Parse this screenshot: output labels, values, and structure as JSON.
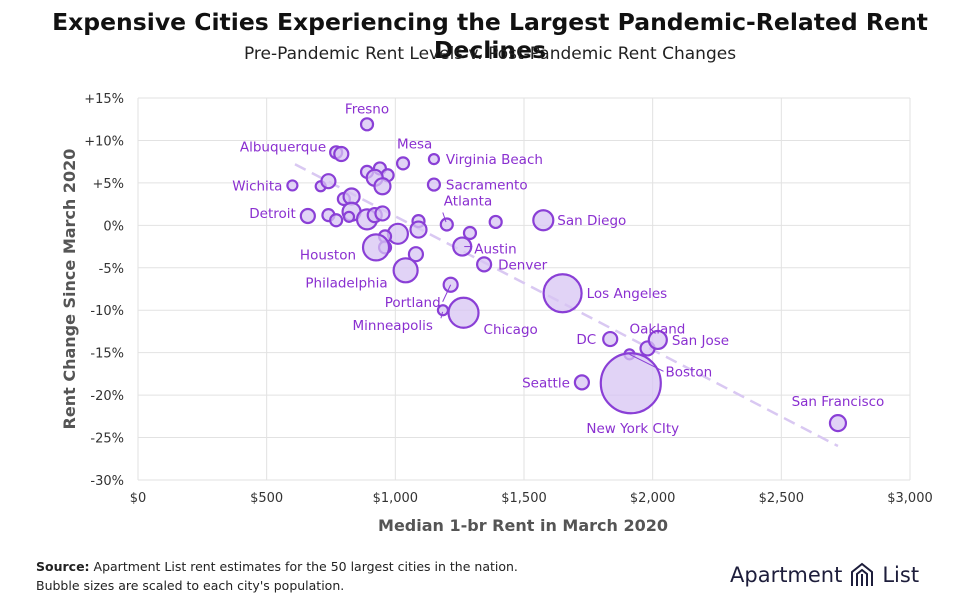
{
  "title": "Expensive Cities Experiencing the Largest Pandemic-Related Rent Declines",
  "subtitle": "Pre-Pandemic Rent Levels v. Post-Pandemic Rent Changes",
  "source": {
    "label": "Source:",
    "line1": "Apartment List rent estimates for the 50 largest cities in the nation.",
    "line2": "Bubble sizes are scaled to each city's population."
  },
  "logo": {
    "left": "Apartment",
    "right": "List"
  },
  "colors": {
    "bubble_fill": "#d7c4f3",
    "bubble_stroke": "#8a3fd6",
    "label": "#8a2fd0",
    "grid": "#e2e2e2",
    "trend": "#d9c8f2"
  },
  "chart_data": {
    "type": "scatter",
    "xlabel": "Median 1-br Rent in March 2020",
    "ylabel": "Rent Change Since March 2020",
    "xlim": [
      0,
      3000
    ],
    "ylim": [
      -30,
      15
    ],
    "x_ticks": [
      0,
      500,
      1000,
      1500,
      2000,
      2500,
      3000
    ],
    "x_tick_labels": [
      "$0",
      "$500",
      "$1,000",
      "$1,500",
      "$2,000",
      "$2,500",
      "$3,000"
    ],
    "y_ticks": [
      15,
      10,
      5,
      0,
      -5,
      -10,
      -15,
      -20,
      -25,
      -30
    ],
    "y_tick_labels": [
      "+15%",
      "+10%",
      "+5%",
      "0%",
      "-5%",
      "-10%",
      "-15%",
      "-20%",
      "-25%",
      "-30%"
    ],
    "grid": true,
    "trendline": {
      "x": [
        610,
        2720
      ],
      "y": [
        7.2,
        -26
      ]
    },
    "points": [
      {
        "label": "Fresno",
        "x": 890,
        "y": 11.9,
        "r": 6
      },
      {
        "label": "Albuquerque",
        "x": 770,
        "y": 8.6,
        "r": 6
      },
      {
        "label": "",
        "x": 790,
        "y": 8.4,
        "r": 7
      },
      {
        "label": "Mesa",
        "x": 1030,
        "y": 7.3,
        "r": 6
      },
      {
        "label": "Virginia Beach",
        "x": 1150,
        "y": 7.8,
        "r": 5
      },
      {
        "label": "",
        "x": 890,
        "y": 6.3,
        "r": 6
      },
      {
        "label": "",
        "x": 940,
        "y": 6.7,
        "r": 6
      },
      {
        "label": "",
        "x": 970,
        "y": 5.9,
        "r": 6
      },
      {
        "label": "",
        "x": 920,
        "y": 5.6,
        "r": 8
      },
      {
        "label": "",
        "x": 950,
        "y": 4.6,
        "r": 8
      },
      {
        "label": "Sacramento",
        "x": 1150,
        "y": 4.8,
        "r": 6
      },
      {
        "label": "Wichita",
        "x": 600,
        "y": 4.7,
        "r": 5
      },
      {
        "label": "",
        "x": 710,
        "y": 4.6,
        "r": 5
      },
      {
        "label": "",
        "x": 740,
        "y": 5.2,
        "r": 7
      },
      {
        "label": "",
        "x": 800,
        "y": 3.1,
        "r": 6
      },
      {
        "label": "",
        "x": 830,
        "y": 3.4,
        "r": 8
      },
      {
        "label": "",
        "x": 830,
        "y": 1.6,
        "r": 9
      },
      {
        "label": "Detroit",
        "x": 660,
        "y": 1.1,
        "r": 7
      },
      {
        "label": "",
        "x": 740,
        "y": 1.2,
        "r": 6
      },
      {
        "label": "",
        "x": 770,
        "y": 0.6,
        "r": 6
      },
      {
        "label": "",
        "x": 820,
        "y": 1.0,
        "r": 5
      },
      {
        "label": "",
        "x": 890,
        "y": 0.7,
        "r": 10
      },
      {
        "label": "",
        "x": 920,
        "y": 1.2,
        "r": 7
      },
      {
        "label": "",
        "x": 950,
        "y": 1.4,
        "r": 7
      },
      {
        "label": "",
        "x": 1090,
        "y": 0.5,
        "r": 6
      },
      {
        "label": "Atlanta",
        "x": 1200,
        "y": 0.1,
        "r": 6
      },
      {
        "label": "",
        "x": 1390,
        "y": 0.4,
        "r": 6
      },
      {
        "label": "San Diego",
        "x": 1575,
        "y": 0.6,
        "r": 10
      },
      {
        "label": "",
        "x": 1090,
        "y": -0.5,
        "r": 8
      },
      {
        "label": "",
        "x": 1010,
        "y": -1.0,
        "r": 10
      },
      {
        "label": "",
        "x": 960,
        "y": -1.3,
        "r": 6
      },
      {
        "label": "",
        "x": 960,
        "y": -2.6,
        "r": 6
      },
      {
        "label": "Houston",
        "x": 925,
        "y": -2.6,
        "r": 13
      },
      {
        "label": "",
        "x": 1290,
        "y": -0.9,
        "r": 6
      },
      {
        "label": "Austin",
        "x": 1260,
        "y": -2.5,
        "r": 9
      },
      {
        "label": "",
        "x": 1080,
        "y": -3.4,
        "r": 7
      },
      {
        "label": "Denver",
        "x": 1345,
        "y": -4.6,
        "r": 7
      },
      {
        "label": "Philadelphia",
        "x": 1040,
        "y": -5.3,
        "r": 12
      },
      {
        "label": "Portland",
        "x": 1215,
        "y": -7.0,
        "r": 7
      },
      {
        "label": "Minneapolis",
        "x": 1185,
        "y": -10.0,
        "r": 5
      },
      {
        "label": "Chicago",
        "x": 1265,
        "y": -10.3,
        "r": 15
      },
      {
        "label": "Los Angeles",
        "x": 1650,
        "y": -8.0,
        "r": 19
      },
      {
        "label": "DC",
        "x": 1835,
        "y": -13.4,
        "r": 7
      },
      {
        "label": "Oakland",
        "x": 1980,
        "y": -14.5,
        "r": 7
      },
      {
        "label": "San Jose",
        "x": 2020,
        "y": -13.5,
        "r": 9
      },
      {
        "label": "Boston",
        "x": 1910,
        "y": -15.2,
        "r": 5
      },
      {
        "label": "Seattle",
        "x": 1725,
        "y": -18.5,
        "r": 7
      },
      {
        "label": "New York CIty",
        "x": 1915,
        "y": -18.6,
        "r": 30
      },
      {
        "label": "San Francisco",
        "x": 2720,
        "y": -23.3,
        "r": 8
      }
    ]
  }
}
